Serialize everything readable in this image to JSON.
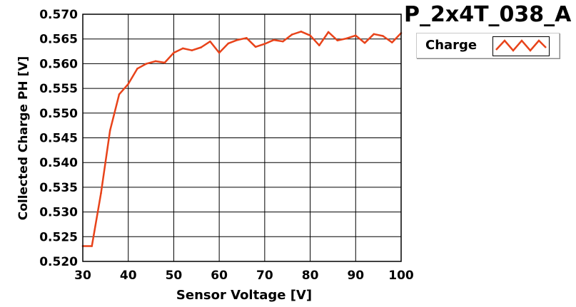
{
  "chart_data": {
    "type": "line",
    "title": "P_2x4T_038_A",
    "xlabel": "Sensor Voltage [V]",
    "ylabel": "Collected Charge PH [V]",
    "xlim": [
      30,
      100
    ],
    "ylim": [
      0.52,
      0.57
    ],
    "x_ticks": [
      "30",
      "40",
      "50",
      "60",
      "70",
      "80",
      "90",
      "100"
    ],
    "y_ticks": [
      "0.520",
      "0.525",
      "0.530",
      "0.535",
      "0.540",
      "0.545",
      "0.550",
      "0.555",
      "0.560",
      "0.565",
      "0.570"
    ],
    "grid": true,
    "legend": "top-right",
    "series": [
      {
        "name": "Charge",
        "color": "#e8431a",
        "x": [
          30,
          32,
          34,
          36,
          38,
          40,
          42,
          44,
          46,
          48,
          50,
          52,
          54,
          56,
          58,
          60,
          62,
          64,
          66,
          68,
          70,
          72,
          74,
          76,
          78,
          80,
          82,
          84,
          86,
          88,
          90,
          92,
          94,
          96,
          98,
          100
        ],
        "y": [
          0.5231,
          0.5231,
          0.5338,
          0.5465,
          0.5538,
          0.5559,
          0.559,
          0.56,
          0.5605,
          0.5602,
          0.5622,
          0.5631,
          0.5627,
          0.5633,
          0.5645,
          0.5622,
          0.5641,
          0.5648,
          0.5652,
          0.5634,
          0.564,
          0.5648,
          0.5645,
          0.5659,
          0.5665,
          0.5657,
          0.5637,
          0.5664,
          0.5647,
          0.5651,
          0.5657,
          0.5642,
          0.566,
          0.5656,
          0.5643,
          0.5662
        ]
      }
    ]
  }
}
